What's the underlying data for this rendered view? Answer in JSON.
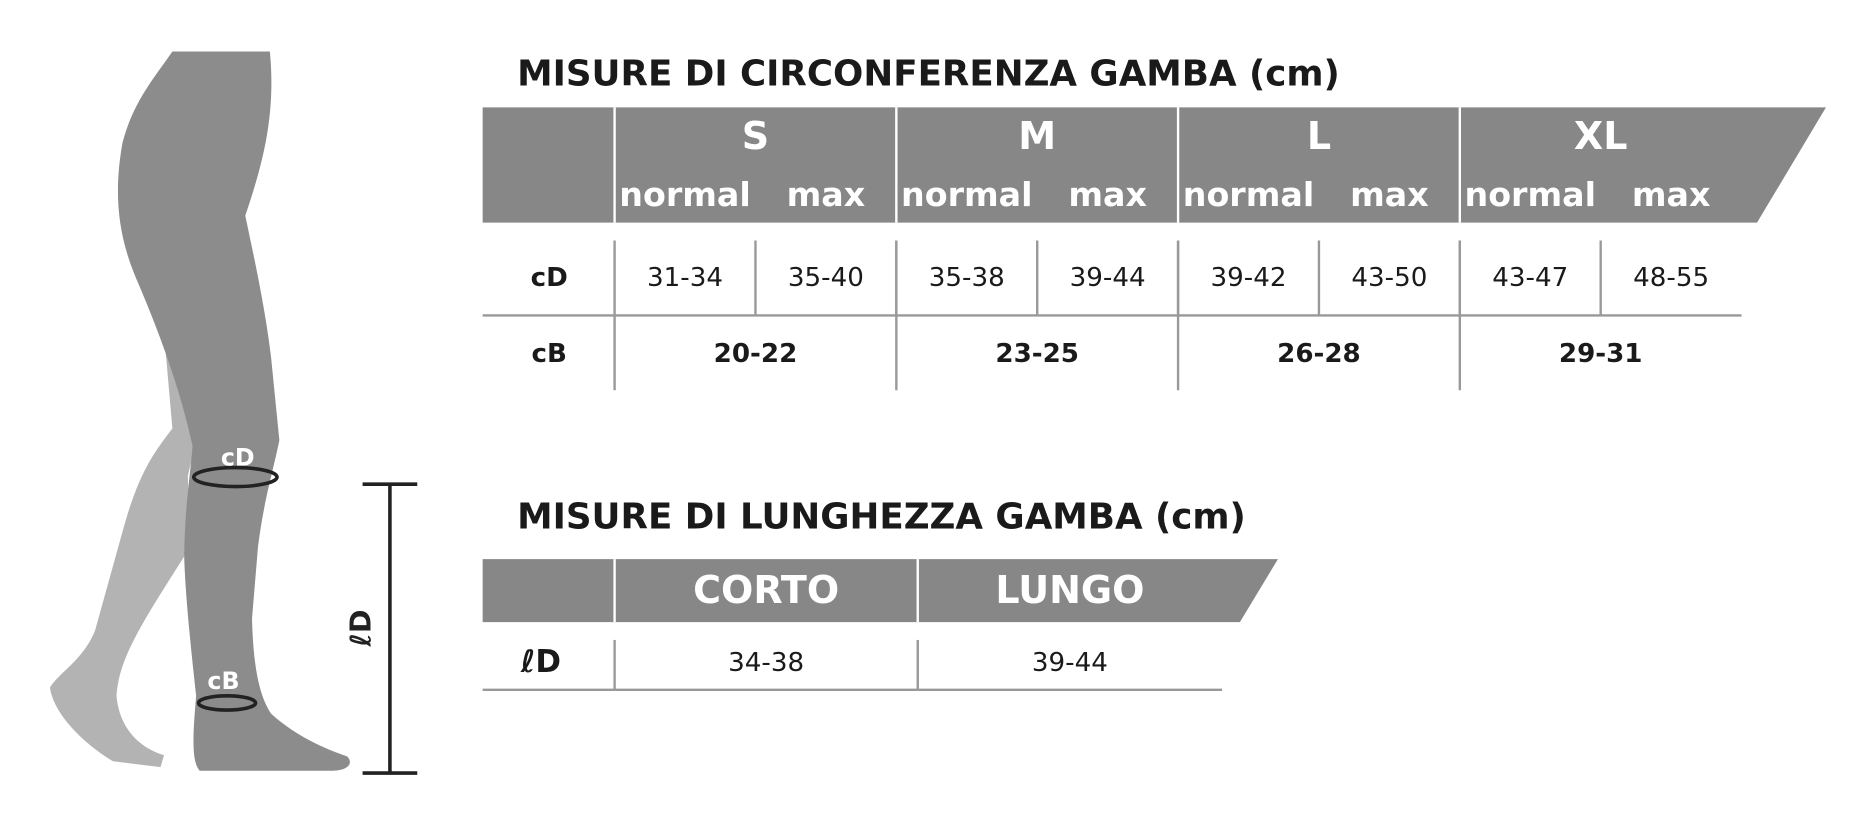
{
  "leg_labels": {
    "cD": "cD",
    "cB": "cB",
    "lD": "ℓD"
  },
  "circumference": {
    "title": "MISURE DI CIRCONFERENZA GAMBA (cm)",
    "sizes": [
      {
        "name": "S",
        "sub": [
          "normal",
          "max"
        ]
      },
      {
        "name": "M",
        "sub": [
          "normal",
          "max"
        ]
      },
      {
        "name": "L",
        "sub": [
          "normal",
          "max"
        ]
      },
      {
        "name": "XL",
        "sub": [
          "normal",
          "max"
        ]
      }
    ],
    "rows": [
      {
        "label": "cD",
        "values": [
          "31-34",
          "35-40",
          "35-38",
          "39-44",
          "39-42",
          "43-50",
          "43-47",
          "48-55"
        ]
      },
      {
        "label": "cB",
        "values": [
          "20-22",
          "23-25",
          "26-28",
          "29-31"
        ]
      }
    ]
  },
  "length": {
    "title": "MISURE DI LUNGHEZZA GAMBA (cm)",
    "columns": [
      "CORTO",
      "LUNGO"
    ],
    "rows": [
      {
        "label": "ℓD",
        "values": [
          "34-38",
          "39-44"
        ]
      }
    ]
  }
}
